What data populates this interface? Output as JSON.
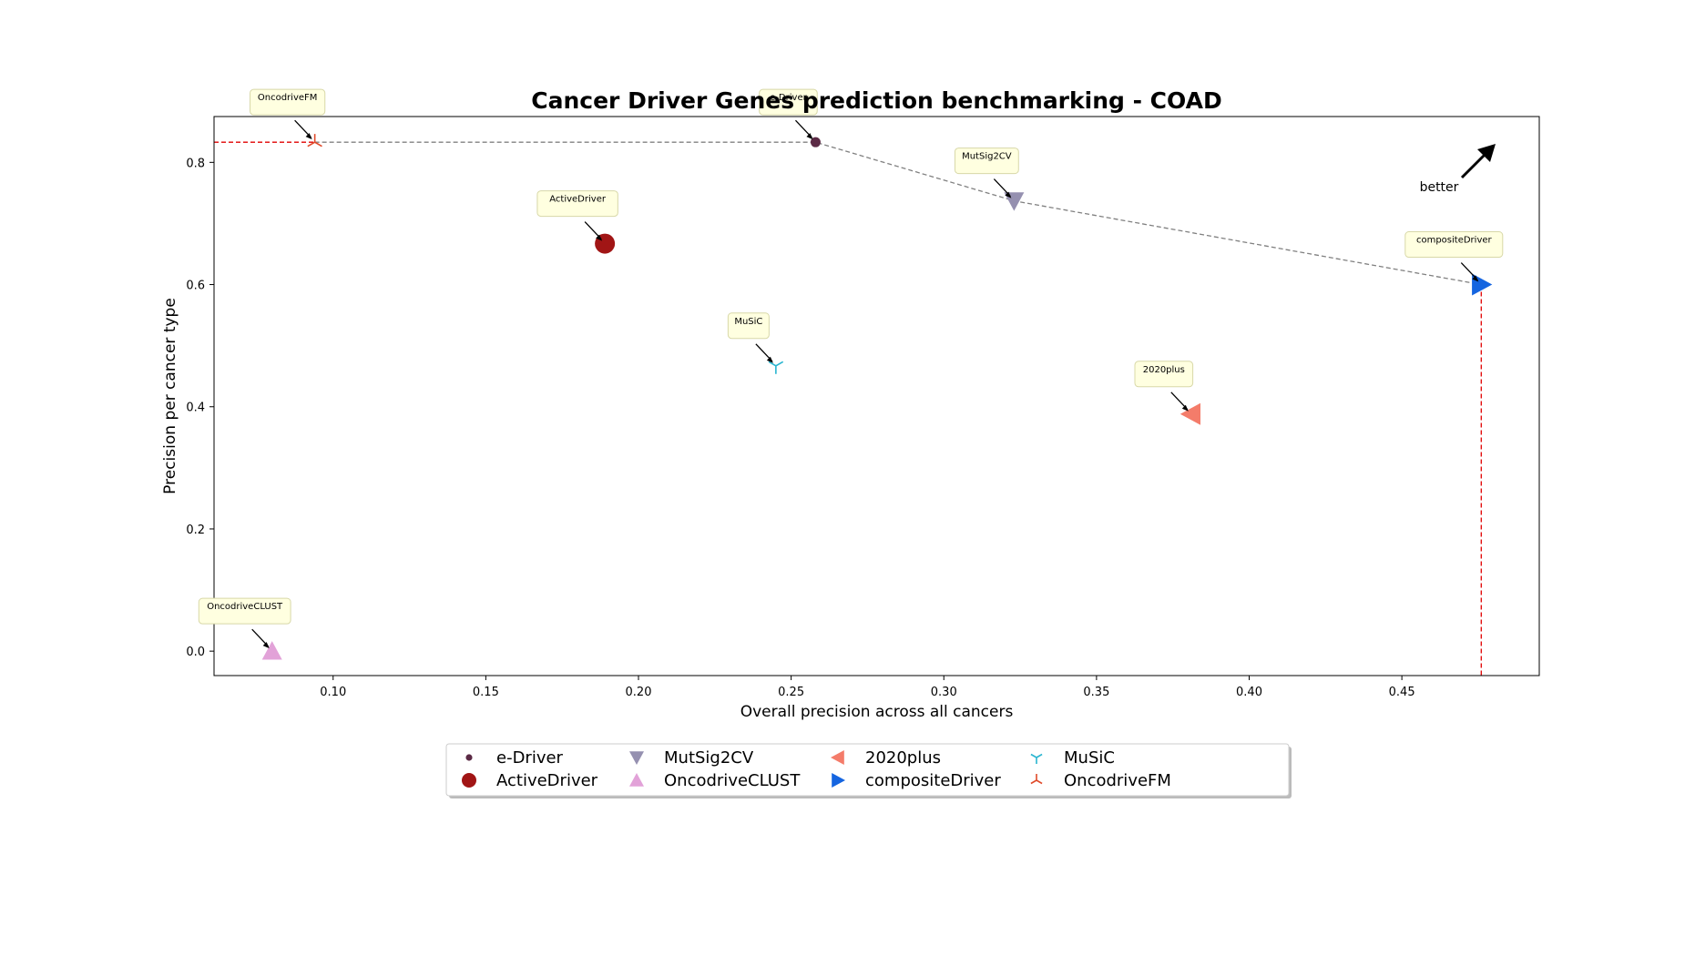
{
  "chart_data": {
    "type": "scatter",
    "title": "Cancer Driver Genes prediction benchmarking - COAD",
    "xlabel": "Overall precision across all cancers",
    "ylabel": "Precision per cancer type",
    "xlim": [
      0.061,
      0.495
    ],
    "ylim": [
      -0.04,
      0.875
    ],
    "xticks": [
      0.1,
      0.15,
      0.2,
      0.25,
      0.3,
      0.35,
      0.4,
      0.45
    ],
    "xtick_labels": [
      "0.10",
      "0.15",
      "0.20",
      "0.25",
      "0.30",
      "0.35",
      "0.40",
      "0.45"
    ],
    "yticks": [
      0.0,
      0.2,
      0.4,
      0.6,
      0.8
    ],
    "ytick_labels": [
      "0.0",
      "0.2",
      "0.4",
      "0.6",
      "0.8"
    ],
    "grid": false,
    "legend_position": "below-center",
    "better_label": "better",
    "series": [
      {
        "name": "e-Driver",
        "x": 0.258,
        "y": 0.833,
        "marker": "circle-small",
        "color": "#5b2a45",
        "annotation": "e-Driver"
      },
      {
        "name": "ActiveDriver",
        "x": 0.189,
        "y": 0.667,
        "marker": "circle-large",
        "color": "#a11515",
        "annotation": "ActiveDriver"
      },
      {
        "name": "MutSig2CV",
        "x": 0.323,
        "y": 0.737,
        "marker": "triangle-down",
        "color": "#9590b0",
        "annotation": "MutSig2CV"
      },
      {
        "name": "OncodriveCLUST",
        "x": 0.08,
        "y": 0.0,
        "marker": "triangle-up",
        "color": "#e2a2d8",
        "annotation": "OncodriveCLUST"
      },
      {
        "name": "2020plus",
        "x": 0.381,
        "y": 0.388,
        "marker": "triangle-left",
        "color": "#f47c6a",
        "annotation": "2020plus"
      },
      {
        "name": "compositeDriver",
        "x": 0.476,
        "y": 0.6,
        "marker": "triangle-right",
        "color": "#1565e0",
        "annotation": "compositeDriver"
      },
      {
        "name": "MuSiC",
        "x": 0.245,
        "y": 0.467,
        "marker": "tri-down",
        "color": "#2ab5d0",
        "annotation": "MuSiC"
      },
      {
        "name": "OncodriveFM",
        "x": 0.094,
        "y": 0.833,
        "marker": "tri-up",
        "color": "#e04a2a",
        "annotation": "OncodriveFM"
      }
    ],
    "pareto_front": [
      [
        0.094,
        0.833
      ],
      [
        0.258,
        0.833
      ],
      [
        0.323,
        0.737
      ],
      [
        0.476,
        0.6
      ]
    ],
    "reference_lines": {
      "y": 0.833,
      "x": 0.476,
      "color": "#e00000"
    }
  }
}
